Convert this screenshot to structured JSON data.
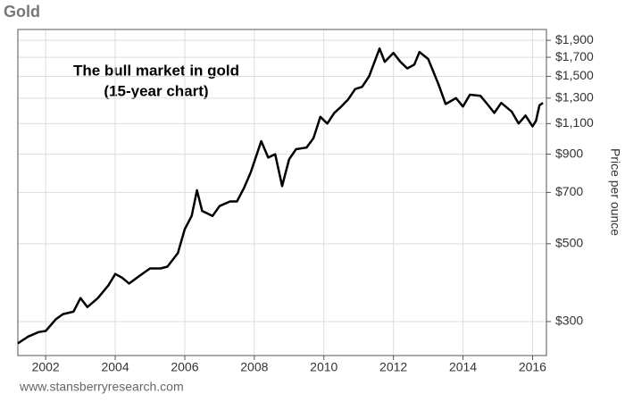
{
  "chart_data": {
    "type": "line",
    "title": "Gold",
    "annotation": [
      "The bull market in gold",
      "(15-year chart)"
    ],
    "y_label": "Price per ounce",
    "source": "www.stansberryresearch.com",
    "log_y": true,
    "grid": true,
    "color": "#000000",
    "x": [
      2001.2,
      2001.5,
      2001.8,
      2002.0,
      2002.3,
      2002.5,
      2002.8,
      2003.0,
      2003.2,
      2003.5,
      2003.8,
      2004.0,
      2004.2,
      2004.4,
      2004.7,
      2005.0,
      2005.3,
      2005.5,
      2005.8,
      2006.0,
      2006.2,
      2006.35,
      2006.5,
      2006.8,
      2007.0,
      2007.3,
      2007.5,
      2007.7,
      2007.9,
      2008.2,
      2008.4,
      2008.6,
      2008.8,
      2009.0,
      2009.2,
      2009.5,
      2009.7,
      2009.9,
      2010.1,
      2010.3,
      2010.5,
      2010.7,
      2010.9,
      2011.1,
      2011.3,
      2011.6,
      2011.75,
      2012.0,
      2012.2,
      2012.4,
      2012.6,
      2012.75,
      2013.0,
      2013.3,
      2013.5,
      2013.8,
      2014.0,
      2014.2,
      2014.5,
      2014.7,
      2014.9,
      2015.1,
      2015.4,
      2015.6,
      2015.8,
      2016.0,
      2016.1,
      2016.2,
      2016.3
    ],
    "values": [
      260,
      272,
      280,
      282,
      305,
      315,
      320,
      350,
      330,
      350,
      380,
      410,
      400,
      385,
      405,
      425,
      425,
      430,
      470,
      550,
      600,
      710,
      620,
      600,
      640,
      660,
      660,
      720,
      800,
      980,
      880,
      900,
      730,
      870,
      930,
      940,
      1000,
      1150,
      1100,
      1180,
      1230,
      1290,
      1380,
      1400,
      1500,
      1800,
      1650,
      1750,
      1650,
      1580,
      1620,
      1760,
      1680,
      1420,
      1250,
      1300,
      1230,
      1330,
      1320,
      1250,
      1180,
      1260,
      1190,
      1100,
      1160,
      1080,
      1120,
      1240,
      1260
    ],
    "xlim": [
      2001.2,
      2016.4
    ],
    "xticks": [
      2002,
      2004,
      2006,
      2008,
      2010,
      2012,
      2014,
      2016
    ],
    "ylim": [
      240,
      2040
    ],
    "yticks": [
      {
        "value": 300,
        "label": "$300"
      },
      {
        "value": 500,
        "label": "$500"
      },
      {
        "value": 700,
        "label": "$700"
      },
      {
        "value": 900,
        "label": "$900"
      },
      {
        "value": 1100,
        "label": "$1,100"
      },
      {
        "value": 1300,
        "label": "$1,300"
      },
      {
        "value": 1500,
        "label": "$1,500"
      },
      {
        "value": 1700,
        "label": "$1,700"
      },
      {
        "value": 1900,
        "label": "$1,900"
      }
    ]
  }
}
